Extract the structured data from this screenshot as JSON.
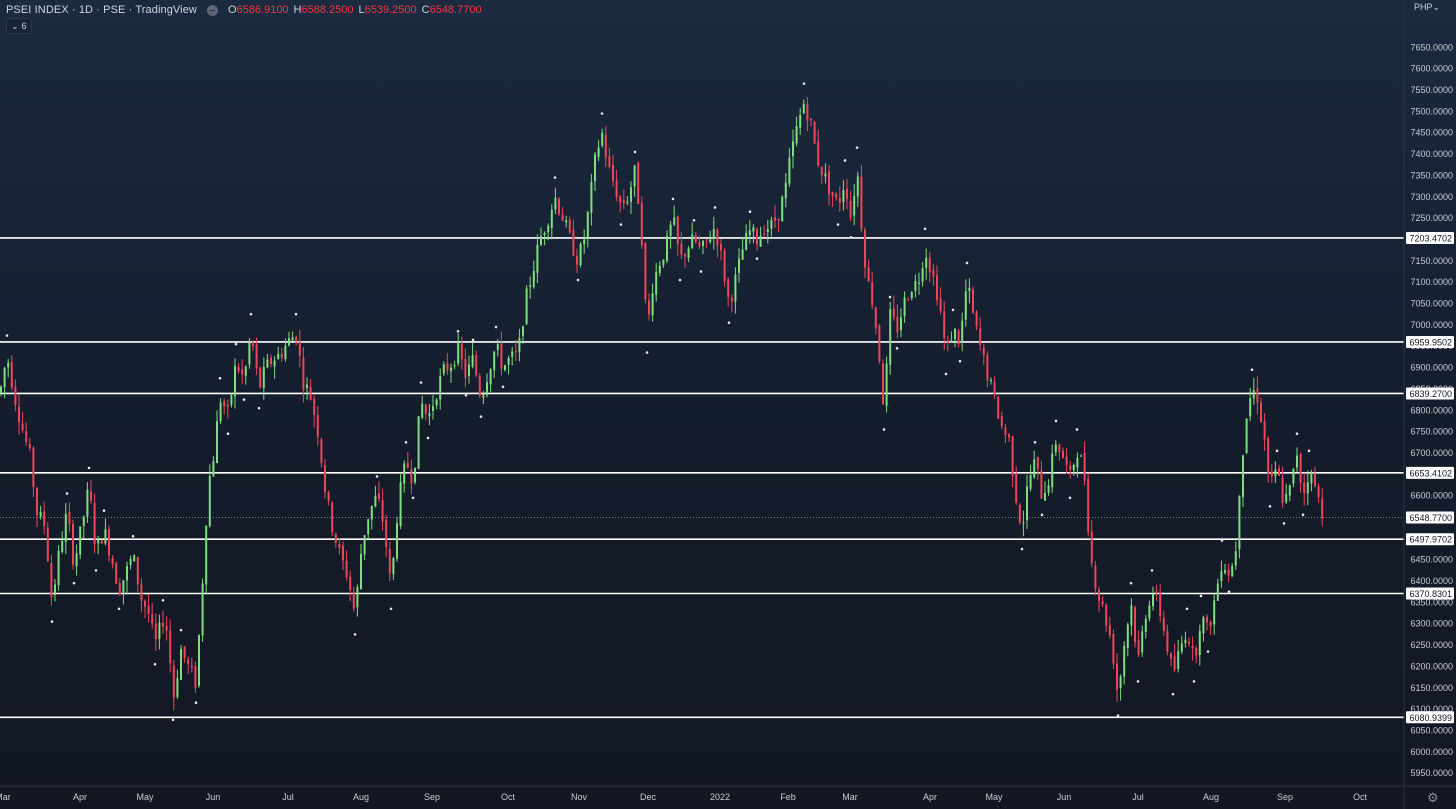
{
  "header": {
    "symbol": "PSEI INDEX · 1D · PSE · TradingView",
    "ohlc": [
      {
        "k": "O",
        "v": "6586.9100"
      },
      {
        "k": "H",
        "v": "6588.2500"
      },
      {
        "k": "L",
        "v": "6539.2500"
      },
      {
        "k": "C",
        "v": "6548.7700"
      }
    ],
    "collapse_label": "6",
    "currency": "PHP"
  },
  "colors": {
    "up": "#7ddf7d",
    "down": "#f0445a",
    "level_line": "#ffffff",
    "axis_text": "#c9ccd3"
  },
  "chart_data": {
    "type": "candlestick",
    "y_axis_ticks": [
      "5950.0000",
      "6000.0000",
      "6050.0000",
      "6100.0000",
      "6150.0000",
      "6200.0000",
      "6250.0000",
      "6300.0000",
      "6350.0000",
      "6400.0000",
      "6450.0000",
      "6500.0000",
      "6550.0000",
      "6600.0000",
      "6650.0000",
      "6700.0000",
      "6750.0000",
      "6800.0000",
      "6850.0000",
      "6900.0000",
      "6950.0000",
      "7000.0000",
      "7050.0000",
      "7100.0000",
      "7150.0000",
      "7200.0000",
      "7250.0000",
      "7300.0000",
      "7350.0000",
      "7400.0000",
      "7450.0000",
      "7500.0000",
      "7550.0000",
      "7600.0000",
      "7650.0000"
    ],
    "ylim": [
      5910,
      7680
    ],
    "x_axis_labels": [
      "Mar",
      "Apr",
      "May",
      "Jun",
      "Jul",
      "Aug",
      "Sep",
      "Oct",
      "Nov",
      "Dec",
      "2022",
      "Feb",
      "Mar",
      "Apr",
      "May",
      "Jun",
      "Jul",
      "Aug",
      "Sep",
      "Oct"
    ],
    "horizontal_levels": [
      "7203.4702",
      "6959.9502",
      "6839.2700",
      "6653.4102",
      "6497.9702",
      "6370.8301",
      "6080.9399"
    ],
    "last_price": "6548.7700",
    "price_path": [
      [
        0,
        6840
      ],
      [
        7,
        6930
      ],
      [
        15,
        6830
      ],
      [
        22,
        6760
      ],
      [
        30,
        6690
      ],
      [
        37,
        6560
      ],
      [
        45,
        6530
      ],
      [
        52,
        6350
      ],
      [
        60,
        6480
      ],
      [
        67,
        6560
      ],
      [
        74,
        6440
      ],
      [
        82,
        6530
      ],
      [
        89,
        6620
      ],
      [
        96,
        6470
      ],
      [
        104,
        6520
      ],
      [
        111,
        6460
      ],
      [
        119,
        6380
      ],
      [
        126,
        6420
      ],
      [
        133,
        6460
      ],
      [
        141,
        6360
      ],
      [
        148,
        6330
      ],
      [
        155,
        6250
      ],
      [
        163,
        6310
      ],
      [
        168,
        6280
      ],
      [
        173,
        6120
      ],
      [
        181,
        6240
      ],
      [
        188,
        6200
      ],
      [
        196,
        6160
      ],
      [
        202,
        6380
      ],
      [
        208,
        6620
      ],
      [
        214,
        6700
      ],
      [
        220,
        6830
      ],
      [
        228,
        6790
      ],
      [
        236,
        6910
      ],
      [
        244,
        6870
      ],
      [
        251,
        6980
      ],
      [
        259,
        6850
      ],
      [
        266,
        6900
      ],
      [
        273,
        6920
      ],
      [
        280,
        6930
      ],
      [
        288,
        6960
      ],
      [
        296,
        6980
      ],
      [
        303,
        6870
      ],
      [
        311,
        6830
      ],
      [
        318,
        6750
      ],
      [
        326,
        6600
      ],
      [
        333,
        6520
      ],
      [
        340,
        6460
      ],
      [
        348,
        6410
      ],
      [
        355,
        6320
      ],
      [
        362,
        6490
      ],
      [
        369,
        6560
      ],
      [
        377,
        6600
      ],
      [
        384,
        6530
      ],
      [
        391,
        6380
      ],
      [
        398,
        6580
      ],
      [
        406,
        6680
      ],
      [
        413,
        6640
      ],
      [
        421,
        6820
      ],
      [
        428,
        6780
      ],
      [
        436,
        6840
      ],
      [
        443,
        6890
      ],
      [
        451,
        6910
      ],
      [
        458,
        6940
      ],
      [
        466,
        6880
      ],
      [
        473,
        6920
      ],
      [
        481,
        6830
      ],
      [
        488,
        6890
      ],
      [
        496,
        6950
      ],
      [
        503,
        6900
      ],
      [
        510,
        6920
      ],
      [
        518,
        6930
      ],
      [
        525,
        7050
      ],
      [
        533,
        7130
      ],
      [
        540,
        7200
      ],
      [
        548,
        7250
      ],
      [
        555,
        7300
      ],
      [
        563,
        7250
      ],
      [
        570,
        7200
      ],
      [
        578,
        7150
      ],
      [
        585,
        7210
      ],
      [
        591,
        7310
      ],
      [
        596,
        7400
      ],
      [
        602,
        7450
      ],
      [
        608,
        7370
      ],
      [
        614,
        7330
      ],
      [
        621,
        7280
      ],
      [
        628,
        7300
      ],
      [
        635,
        7360
      ],
      [
        641,
        7240
      ],
      [
        647,
        6980
      ],
      [
        653,
        7100
      ],
      [
        660,
        7150
      ],
      [
        666,
        7180
      ],
      [
        673,
        7250
      ],
      [
        680,
        7150
      ],
      [
        687,
        7180
      ],
      [
        694,
        7200
      ],
      [
        701,
        7170
      ],
      [
        708,
        7200
      ],
      [
        715,
        7230
      ],
      [
        722,
        7150
      ],
      [
        729,
        7050
      ],
      [
        736,
        7110
      ],
      [
        743,
        7180
      ],
      [
        750,
        7220
      ],
      [
        757,
        7200
      ],
      [
        764,
        7230
      ],
      [
        771,
        7230
      ],
      [
        778,
        7260
      ],
      [
        785,
        7310
      ],
      [
        791,
        7400
      ],
      [
        798,
        7470
      ],
      [
        804,
        7520
      ],
      [
        810,
        7480
      ],
      [
        817,
        7390
      ],
      [
        824,
        7350
      ],
      [
        831,
        7310
      ],
      [
        838,
        7280
      ],
      [
        845,
        7340
      ],
      [
        851,
        7250
      ],
      [
        857,
        7370
      ],
      [
        863,
        7190
      ],
      [
        868,
        7100
      ],
      [
        873,
        7050
      ],
      [
        878,
        6960
      ],
      [
        884,
        6800
      ],
      [
        890,
        7020
      ],
      [
        897,
        6990
      ],
      [
        904,
        7050
      ],
      [
        911,
        7090
      ],
      [
        918,
        7100
      ],
      [
        925,
        7180
      ],
      [
        932,
        7120
      ],
      [
        939,
        7060
      ],
      [
        946,
        6930
      ],
      [
        953,
        6990
      ],
      [
        960,
        6960
      ],
      [
        967,
        7100
      ],
      [
        974,
        7010
      ],
      [
        981,
        6940
      ],
      [
        988,
        6880
      ],
      [
        995,
        6820
      ],
      [
        1002,
        6760
      ],
      [
        1009,
        6730
      ],
      [
        1016,
        6600
      ],
      [
        1022,
        6520
      ],
      [
        1028,
        6630
      ],
      [
        1035,
        6680
      ],
      [
        1042,
        6600
      ],
      [
        1049,
        6640
      ],
      [
        1056,
        6730
      ],
      [
        1063,
        6690
      ],
      [
        1070,
        6640
      ],
      [
        1077,
        6710
      ],
      [
        1084,
        6660
      ],
      [
        1091,
        6450
      ],
      [
        1098,
        6370
      ],
      [
        1105,
        6320
      ],
      [
        1112,
        6250
      ],
      [
        1118,
        6130
      ],
      [
        1124,
        6250
      ],
      [
        1131,
        6350
      ],
      [
        1138,
        6210
      ],
      [
        1145,
        6320
      ],
      [
        1152,
        6380
      ],
      [
        1159,
        6340
      ],
      [
        1166,
        6260
      ],
      [
        1173,
        6180
      ],
      [
        1180,
        6240
      ],
      [
        1187,
        6290
      ],
      [
        1194,
        6210
      ],
      [
        1201,
        6320
      ],
      [
        1208,
        6280
      ],
      [
        1215,
        6360
      ],
      [
        1222,
        6450
      ],
      [
        1229,
        6420
      ],
      [
        1235,
        6450
      ],
      [
        1240,
        6640
      ],
      [
        1246,
        6780
      ],
      [
        1252,
        6850
      ],
      [
        1258,
        6830
      ],
      [
        1264,
        6740
      ],
      [
        1270,
        6620
      ],
      [
        1277,
        6660
      ],
      [
        1284,
        6580
      ],
      [
        1291,
        6620
      ],
      [
        1297,
        6700
      ],
      [
        1303,
        6600
      ],
      [
        1309,
        6660
      ],
      [
        1315,
        6620
      ],
      [
        1321,
        6570
      ],
      [
        1325,
        6549
      ]
    ],
    "grid": false
  }
}
